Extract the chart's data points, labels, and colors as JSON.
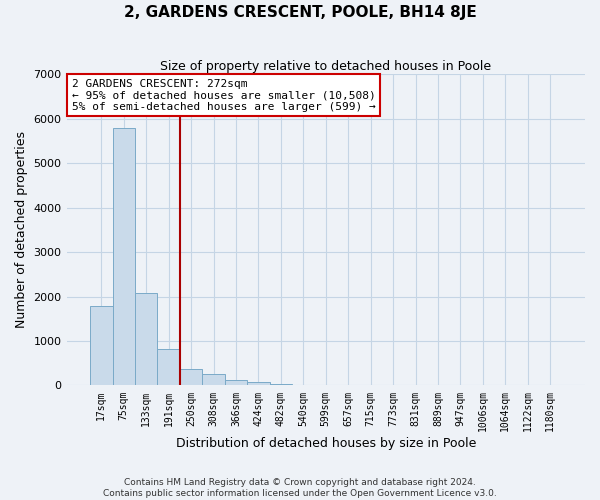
{
  "title": "2, GARDENS CRESCENT, POOLE, BH14 8JE",
  "subtitle": "Size of property relative to detached houses in Poole",
  "xlabel": "Distribution of detached houses by size in Poole",
  "ylabel": "Number of detached properties",
  "bar_labels": [
    "17sqm",
    "75sqm",
    "133sqm",
    "191sqm",
    "250sqm",
    "308sqm",
    "366sqm",
    "424sqm",
    "482sqm",
    "540sqm",
    "599sqm",
    "657sqm",
    "715sqm",
    "773sqm",
    "831sqm",
    "889sqm",
    "947sqm",
    "1006sqm",
    "1064sqm",
    "1122sqm",
    "1180sqm"
  ],
  "bar_values": [
    1780,
    5780,
    2070,
    820,
    380,
    250,
    120,
    80,
    40,
    10,
    5,
    3,
    2,
    0,
    0,
    0,
    0,
    0,
    0,
    0,
    0
  ],
  "bar_color": "#c9daea",
  "bar_edge_color": "#7aaac8",
  "vline_x": 3.5,
  "vline_color": "#aa0000",
  "annotation_title": "2 GARDENS CRESCENT: 272sqm",
  "annotation_line1": "← 95% of detached houses are smaller (10,508)",
  "annotation_line2": "5% of semi-detached houses are larger (599) →",
  "annotation_box_color": "#cc0000",
  "annotation_text_color": "#000000",
  "annotation_bg": "#ffffff",
  "ylim": [
    0,
    7000
  ],
  "yticks": [
    0,
    1000,
    2000,
    3000,
    4000,
    5000,
    6000,
    7000
  ],
  "footer1": "Contains HM Land Registry data © Crown copyright and database right 2024.",
  "footer2": "Contains public sector information licensed under the Open Government Licence v3.0.",
  "grid_color": "#c5d5e5",
  "background_color": "#eef2f7"
}
